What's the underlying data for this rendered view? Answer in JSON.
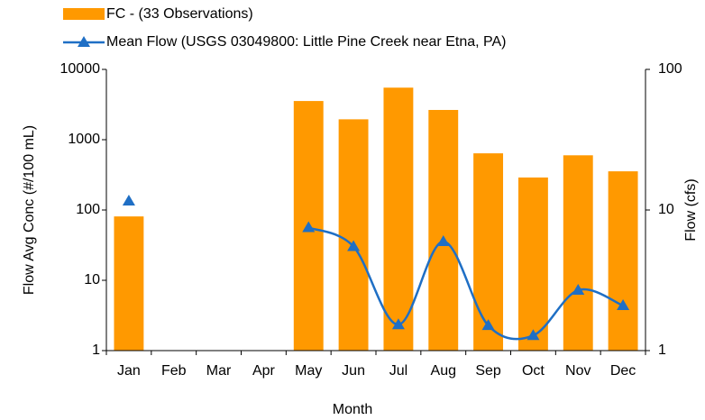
{
  "chart_data": {
    "type": "bar-line",
    "xlabel": "Month",
    "ylabel": "Flow Avg Conc (#/100 mL)",
    "y2label": "Flow (cfs)",
    "categories": [
      "Jan",
      "Feb",
      "Mar",
      "Apr",
      "May",
      "Jun",
      "Jul",
      "Aug",
      "Sep",
      "Oct",
      "Nov",
      "Dec"
    ],
    "series": [
      {
        "name": "FC - (33 Observations)",
        "color": "#ff9900",
        "type": "bar",
        "values": [
          81,
          null,
          null,
          null,
          3550,
          1950,
          5500,
          2650,
          640,
          290,
          600,
          355
        ]
      },
      {
        "name": "Mean Flow (USGS 03049800: Little Pine Creek near Etna, PA)",
        "color": "#1f6fc5",
        "type": "line",
        "axis": "y2",
        "values": [
          11.6,
          null,
          null,
          null,
          7.5,
          5.5,
          1.53,
          5.97,
          1.51,
          1.28,
          2.69,
          2.09
        ]
      }
    ],
    "ylim": [
      1,
      10000
    ],
    "yticks": [
      1,
      10,
      100,
      1000,
      10000
    ],
    "ylog": true,
    "y2lim": [
      1,
      100
    ],
    "y2ticks": [
      1,
      10,
      100
    ],
    "y2log": true,
    "grid": false,
    "legend": "top"
  }
}
